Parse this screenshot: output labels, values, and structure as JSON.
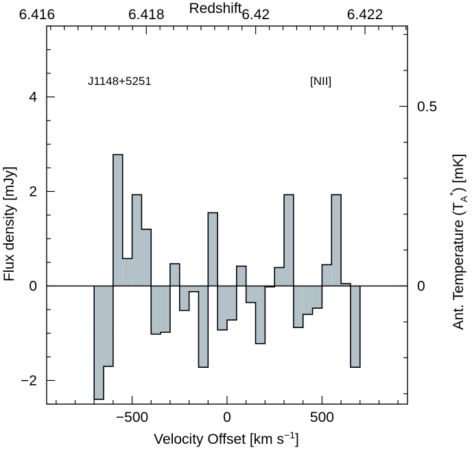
{
  "chart_data": {
    "type": "histogram-step",
    "title": "",
    "annotations": {
      "source": "J1148+5251",
      "line": "[NII]"
    },
    "xlabel": "Velocity Offset [km s",
    "xlabel_sup": "−1",
    "xlabel_end": "]",
    "ylabel": "Flux density [mJy]",
    "top_xlabel": "Redshift",
    "right_ylabel_pre": "Ant. Temperature (T",
    "right_ylabel_sub": "A",
    "right_ylabel_sup": "*",
    "right_ylabel_post": ") [mK]",
    "xlim": [
      -950,
      950
    ],
    "ylim": [
      -2.5,
      5.5
    ],
    "x_ticks": [
      -500,
      0,
      500
    ],
    "x_tick_labels": [
      "−500",
      "0",
      "500"
    ],
    "y_ticks": [
      -2,
      0,
      2,
      4
    ],
    "y_tick_labels": [
      "−2",
      "0",
      "2",
      "4"
    ],
    "top_ticks": [
      6.416,
      6.418,
      6.42,
      6.422
    ],
    "top_tick_labels": [
      "6.416",
      "6.418",
      "6.42",
      "6.422"
    ],
    "right_ticks": [
      0,
      0.5
    ],
    "right_tick_labels": [
      "0",
      "0.5"
    ],
    "bin_width": 50,
    "bin_centers": [
      -675,
      -625,
      -575,
      -525,
      -475,
      -425,
      -375,
      -325,
      -275,
      -225,
      -175,
      -125,
      -75,
      -25,
      25,
      75,
      125,
      175,
      225,
      275,
      325,
      375,
      425,
      475,
      525,
      575,
      625,
      675
    ],
    "values": [
      -2.4,
      -1.7,
      2.78,
      0.58,
      1.93,
      1.2,
      -1.02,
      -0.98,
      0.47,
      -0.52,
      -0.12,
      -1.72,
      1.55,
      -0.93,
      -0.72,
      0.42,
      -0.35,
      -1.22,
      -0.02,
      0.39,
      1.93,
      -0.88,
      -0.6,
      -0.47,
      0.45,
      1.93,
      0.05,
      -1.72
    ]
  }
}
